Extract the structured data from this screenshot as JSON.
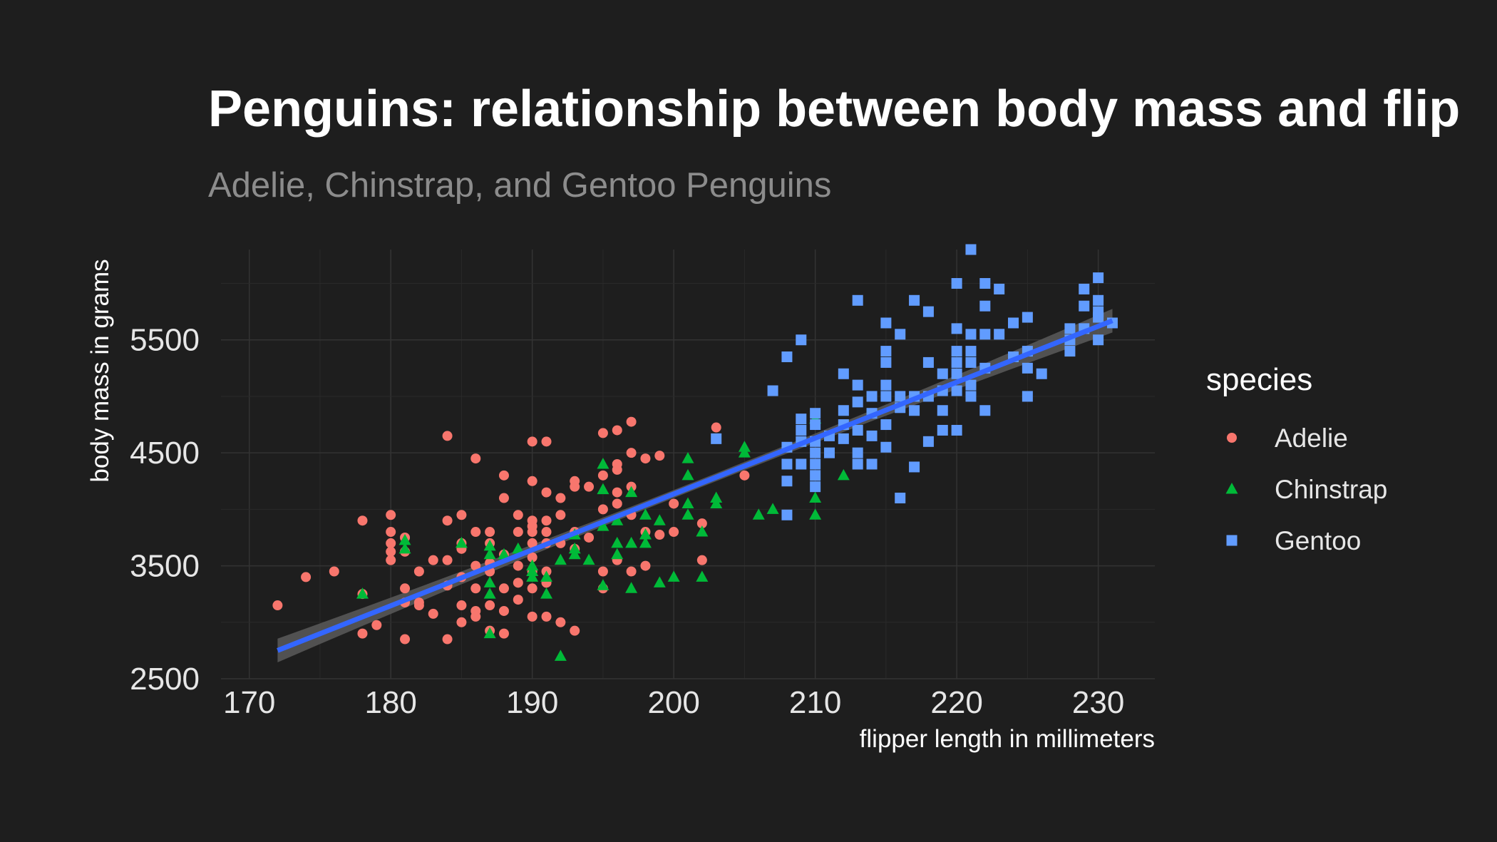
{
  "chart_data": {
    "type": "scatter",
    "title": "Penguins: relationship between body mass and flip",
    "subtitle": "Adelie, Chinstrap, and Gentoo Penguins",
    "xlabel": "flipper length in millimeters",
    "ylabel": "body mass in grams",
    "xlim": [
      168,
      234
    ],
    "ylim": [
      2500,
      6300
    ],
    "x_ticks": [
      170,
      180,
      190,
      200,
      210,
      220,
      230
    ],
    "y_ticks": [
      2500,
      3500,
      4500,
      5500
    ],
    "grid": true,
    "legend": {
      "title": "species",
      "position": "right"
    },
    "trend_line": {
      "x": [
        172,
        231
      ],
      "y": [
        2750,
        5670
      ],
      "color": "#3366ff",
      "band_color": "#5a5a5a"
    },
    "series": [
      {
        "name": "Adelie",
        "shape": "circle",
        "color": "#f8766d",
        "points": [
          [
            172,
            3150
          ],
          [
            174,
            3400
          ],
          [
            176,
            3450
          ],
          [
            178,
            3900
          ],
          [
            178,
            3250
          ],
          [
            178,
            2900
          ],
          [
            179,
            2975
          ],
          [
            180,
            3950
          ],
          [
            180,
            3800
          ],
          [
            180,
            3700
          ],
          [
            180,
            3625
          ],
          [
            180,
            3550
          ],
          [
            181,
            3750
          ],
          [
            181,
            3625
          ],
          [
            181,
            3300
          ],
          [
            181,
            3175
          ],
          [
            181,
            2850
          ],
          [
            182,
            3450
          ],
          [
            182,
            3175
          ],
          [
            182,
            3150
          ],
          [
            183,
            3550
          ],
          [
            183,
            3075
          ],
          [
            184,
            4650
          ],
          [
            184,
            3900
          ],
          [
            184,
            3550
          ],
          [
            184,
            3325
          ],
          [
            184,
            2850
          ],
          [
            185,
            3950
          ],
          [
            185,
            3700
          ],
          [
            185,
            3650
          ],
          [
            185,
            3400
          ],
          [
            185,
            3150
          ],
          [
            185,
            3000
          ],
          [
            186,
            4450
          ],
          [
            186,
            3800
          ],
          [
            186,
            3500
          ],
          [
            186,
            3300
          ],
          [
            186,
            3100
          ],
          [
            186,
            3050
          ],
          [
            187,
            3800
          ],
          [
            187,
            3700
          ],
          [
            187,
            3525
          ],
          [
            187,
            3450
          ],
          [
            187,
            3150
          ],
          [
            187,
            2925
          ],
          [
            188,
            4300
          ],
          [
            188,
            4100
          ],
          [
            188,
            3600
          ],
          [
            188,
            3300
          ],
          [
            188,
            3100
          ],
          [
            188,
            2900
          ],
          [
            189,
            3950
          ],
          [
            189,
            3800
          ],
          [
            189,
            3500
          ],
          [
            189,
            3350
          ],
          [
            189,
            3200
          ],
          [
            190,
            4600
          ],
          [
            190,
            4250
          ],
          [
            190,
            3900
          ],
          [
            190,
            3850
          ],
          [
            190,
            3800
          ],
          [
            190,
            3700
          ],
          [
            190,
            3575
          ],
          [
            190,
            3450
          ],
          [
            190,
            3300
          ],
          [
            190,
            3050
          ],
          [
            191,
            4600
          ],
          [
            191,
            4150
          ],
          [
            191,
            3900
          ],
          [
            191,
            3800
          ],
          [
            191,
            3700
          ],
          [
            191,
            3450
          ],
          [
            191,
            3350
          ],
          [
            191,
            3050
          ],
          [
            192,
            4100
          ],
          [
            192,
            3950
          ],
          [
            192,
            3700
          ],
          [
            192,
            3000
          ],
          [
            193,
            4250
          ],
          [
            193,
            4200
          ],
          [
            193,
            3800
          ],
          [
            193,
            3650
          ],
          [
            193,
            2925
          ],
          [
            194,
            4200
          ],
          [
            194,
            3750
          ],
          [
            195,
            4675
          ],
          [
            195,
            4300
          ],
          [
            195,
            4000
          ],
          [
            195,
            3450
          ],
          [
            195,
            3300
          ],
          [
            196,
            4700
          ],
          [
            196,
            4400
          ],
          [
            196,
            4350
          ],
          [
            196,
            4150
          ],
          [
            196,
            4050
          ],
          [
            196,
            3550
          ],
          [
            197,
            4775
          ],
          [
            197,
            4500
          ],
          [
            197,
            4200
          ],
          [
            197,
            3950
          ],
          [
            197,
            3450
          ],
          [
            198,
            4450
          ],
          [
            198,
            3800
          ],
          [
            198,
            3500
          ],
          [
            199,
            4475
          ],
          [
            199,
            3775
          ],
          [
            200,
            4050
          ],
          [
            200,
            3800
          ],
          [
            202,
            3875
          ],
          [
            202,
            3550
          ],
          [
            203,
            4725
          ],
          [
            205,
            4300
          ]
        ]
      },
      {
        "name": "Chinstrap",
        "shape": "triangle",
        "color": "#00ba38",
        "points": [
          [
            178,
            3250
          ],
          [
            181,
            3725
          ],
          [
            181,
            3650
          ],
          [
            185,
            3700
          ],
          [
            187,
            3675
          ],
          [
            187,
            3600
          ],
          [
            187,
            3350
          ],
          [
            187,
            3250
          ],
          [
            187,
            2900
          ],
          [
            188,
            3600
          ],
          [
            189,
            3650
          ],
          [
            190,
            3500
          ],
          [
            190,
            3450
          ],
          [
            190,
            3400
          ],
          [
            191,
            3400
          ],
          [
            191,
            3250
          ],
          [
            192,
            2700
          ],
          [
            192,
            3550
          ],
          [
            193,
            3775
          ],
          [
            193,
            3650
          ],
          [
            193,
            3600
          ],
          [
            194,
            3550
          ],
          [
            195,
            4400
          ],
          [
            195,
            4175
          ],
          [
            195,
            3850
          ],
          [
            195,
            3325
          ],
          [
            196,
            3900
          ],
          [
            196,
            3700
          ],
          [
            196,
            3600
          ],
          [
            197,
            4150
          ],
          [
            197,
            3700
          ],
          [
            197,
            3300
          ],
          [
            198,
            3950
          ],
          [
            198,
            3775
          ],
          [
            198,
            3700
          ],
          [
            199,
            3900
          ],
          [
            199,
            3350
          ],
          [
            200,
            3400
          ],
          [
            201,
            4450
          ],
          [
            201,
            4300
          ],
          [
            201,
            4050
          ],
          [
            201,
            3950
          ],
          [
            202,
            3800
          ],
          [
            202,
            3400
          ],
          [
            203,
            4100
          ],
          [
            203,
            4050
          ],
          [
            205,
            4550
          ],
          [
            205,
            4500
          ],
          [
            206,
            3950
          ],
          [
            207,
            4000
          ],
          [
            210,
            4800
          ],
          [
            210,
            4100
          ],
          [
            210,
            3950
          ],
          [
            212,
            4300
          ]
        ]
      },
      {
        "name": "Gentoo",
        "shape": "square",
        "color": "#619cff",
        "points": [
          [
            203,
            4625
          ],
          [
            207,
            5050
          ],
          [
            208,
            5350
          ],
          [
            208,
            4550
          ],
          [
            208,
            4400
          ],
          [
            208,
            4250
          ],
          [
            208,
            3950
          ],
          [
            209,
            5500
          ],
          [
            209,
            4800
          ],
          [
            209,
            4700
          ],
          [
            209,
            4600
          ],
          [
            209,
            4400
          ],
          [
            210,
            4850
          ],
          [
            210,
            4750
          ],
          [
            210,
            4600
          ],
          [
            210,
            4500
          ],
          [
            210,
            4400
          ],
          [
            210,
            4300
          ],
          [
            210,
            4200
          ],
          [
            211,
            4500
          ],
          [
            211,
            4650
          ],
          [
            212,
            5200
          ],
          [
            212,
            4875
          ],
          [
            212,
            4750
          ],
          [
            212,
            4625
          ],
          [
            213,
            5850
          ],
          [
            213,
            5100
          ],
          [
            213,
            4950
          ],
          [
            213,
            4700
          ],
          [
            213,
            4500
          ],
          [
            213,
            4400
          ],
          [
            214,
            5000
          ],
          [
            214,
            4850
          ],
          [
            214,
            4650
          ],
          [
            214,
            4400
          ],
          [
            215,
            5650
          ],
          [
            215,
            5400
          ],
          [
            215,
            5300
          ],
          [
            215,
            5100
          ],
          [
            215,
            5000
          ],
          [
            215,
            4750
          ],
          [
            215,
            4550
          ],
          [
            216,
            5550
          ],
          [
            216,
            5000
          ],
          [
            216,
            4900
          ],
          [
            216,
            4100
          ],
          [
            217,
            5850
          ],
          [
            217,
            5000
          ],
          [
            217,
            4875
          ],
          [
            217,
            4375
          ],
          [
            218,
            5750
          ],
          [
            218,
            5300
          ],
          [
            218,
            5000
          ],
          [
            218,
            4600
          ],
          [
            219,
            5200
          ],
          [
            219,
            5050
          ],
          [
            219,
            4875
          ],
          [
            219,
            4700
          ],
          [
            220,
            6000
          ],
          [
            220,
            5600
          ],
          [
            220,
            5400
          ],
          [
            220,
            5300
          ],
          [
            220,
            5200
          ],
          [
            220,
            5050
          ],
          [
            220,
            4700
          ],
          [
            221,
            6300
          ],
          [
            221,
            5550
          ],
          [
            221,
            5400
          ],
          [
            221,
            5300
          ],
          [
            221,
            5100
          ],
          [
            221,
            5000
          ],
          [
            222,
            6000
          ],
          [
            222,
            5800
          ],
          [
            222,
            5550
          ],
          [
            222,
            5250
          ],
          [
            222,
            4875
          ],
          [
            223,
            5950
          ],
          [
            223,
            5550
          ],
          [
            224,
            5650
          ],
          [
            224,
            5350
          ],
          [
            225,
            5700
          ],
          [
            225,
            5400
          ],
          [
            225,
            5250
          ],
          [
            225,
            5000
          ],
          [
            226,
            5200
          ],
          [
            228,
            5600
          ],
          [
            228,
            5500
          ],
          [
            228,
            5400
          ],
          [
            229,
            5950
          ],
          [
            229,
            5800
          ],
          [
            229,
            5600
          ],
          [
            230,
            6050
          ],
          [
            230,
            5850
          ],
          [
            230,
            5750
          ],
          [
            230,
            5700
          ],
          [
            230,
            5500
          ],
          [
            231,
            5650
          ]
        ]
      }
    ]
  }
}
